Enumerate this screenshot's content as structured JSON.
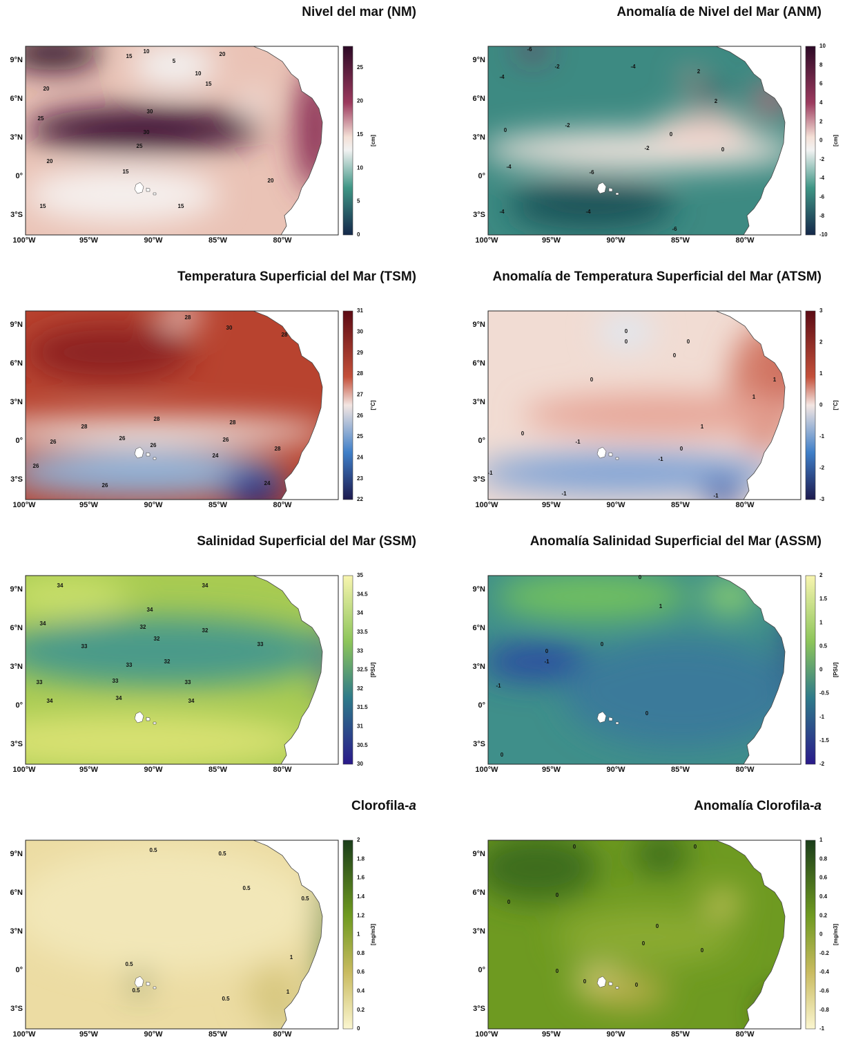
{
  "panels": [
    {
      "title": "Nivel del mar (NM)",
      "units": "[cm]",
      "colorbar_ticks": [
        "25",
        "20",
        "15",
        "10",
        "5",
        "0"
      ],
      "contour_labels": [
        "15",
        "10",
        "5",
        "10",
        "15",
        "20",
        "20",
        "25",
        "30",
        "30",
        "25",
        "20",
        "15",
        "15",
        "15",
        "20"
      ]
    },
    {
      "title": "Anomalía de Nivel del Mar (ANM)",
      "units": "[cm]",
      "colorbar_ticks": [
        "10",
        "8",
        "6",
        "4",
        "2",
        "0",
        "-2",
        "-4",
        "-6",
        "-8",
        "-10"
      ],
      "contour_labels": [
        "-4",
        "-6",
        "-2",
        "2",
        "-4",
        "2",
        "0",
        "0",
        "-2",
        "-2",
        "-4",
        "-6",
        "-6",
        "-4",
        "-4",
        "0"
      ]
    },
    {
      "title": "Temperatura Superficial del Mar (TSM)",
      "units": "[°C]",
      "colorbar_ticks": [
        "31",
        "30",
        "29",
        "28",
        "27",
        "26",
        "25",
        "24",
        "23",
        "22"
      ],
      "contour_labels": [
        "28",
        "30",
        "28",
        "28",
        "28",
        "28",
        "28",
        "26",
        "26",
        "26",
        "26",
        "26",
        "26",
        "24",
        "24"
      ]
    },
    {
      "title": "Anomalía de Temperatura Superficial del Mar (ATSM)",
      "units": "[°C]",
      "colorbar_ticks": [
        "3",
        "2",
        "1",
        "0",
        "-1",
        "-2",
        "-3"
      ],
      "contour_labels": [
        "0",
        "0",
        "0",
        "0",
        "0",
        "1",
        "1",
        "1",
        "0",
        "-1",
        "0",
        "-1",
        "-1",
        "-1",
        "-1"
      ]
    },
    {
      "title": "Salinidad Superficial del Mar (SSM)",
      "units": "[PSU]",
      "colorbar_ticks": [
        "35",
        "34.5",
        "34",
        "33.5",
        "33",
        "32.5",
        "32",
        "31.5",
        "31",
        "30.5",
        "30"
      ],
      "contour_labels": [
        "34",
        "34",
        "34",
        "34",
        "33",
        "33",
        "32",
        "32",
        "32",
        "32",
        "33",
        "33",
        "33",
        "33",
        "34",
        "34",
        "34"
      ]
    },
    {
      "title": "Anomalía Salinidad Superficial del Mar (ASSM)",
      "units": "[PSU]",
      "colorbar_ticks": [
        "2",
        "1.5",
        "1",
        "0.5",
        "0",
        "-0.5",
        "-1",
        "-1.5",
        "-2"
      ],
      "contour_labels": [
        "1",
        "0",
        "0",
        "-1",
        "-1",
        "0",
        "0",
        "0"
      ]
    },
    {
      "title": "Clorofila-",
      "title_em": "a",
      "units": "[mg/m3]",
      "colorbar_ticks": [
        "2",
        "1.8",
        "1.6",
        "1.4",
        "1.2",
        "1",
        "0.8",
        "0.6",
        "0.4",
        "0.2",
        "0"
      ],
      "contour_labels": [
        "0.5",
        "0.5",
        "0.5",
        "0.5",
        "0.5",
        "0.5",
        "0.5",
        "1",
        "1"
      ]
    },
    {
      "title": "Anomalía Clorofila-",
      "title_em": "a",
      "units": "[mg/m3]",
      "colorbar_ticks": [
        "1",
        "0.8",
        "0.6",
        "0.4",
        "0.2",
        "0",
        "-0.2",
        "-0.4",
        "-0.6",
        "-0.8",
        "-1"
      ],
      "contour_labels": [
        "0",
        "0",
        "0",
        "0",
        "0",
        "0",
        "0",
        "0",
        "0",
        "0"
      ]
    }
  ],
  "lat_labels": [
    "9°N",
    "6°N",
    "3°N",
    "0°",
    "3°S"
  ],
  "lon_labels": [
    "100°W",
    "95°W",
    "90°W",
    "85°W",
    "80°W"
  ]
}
